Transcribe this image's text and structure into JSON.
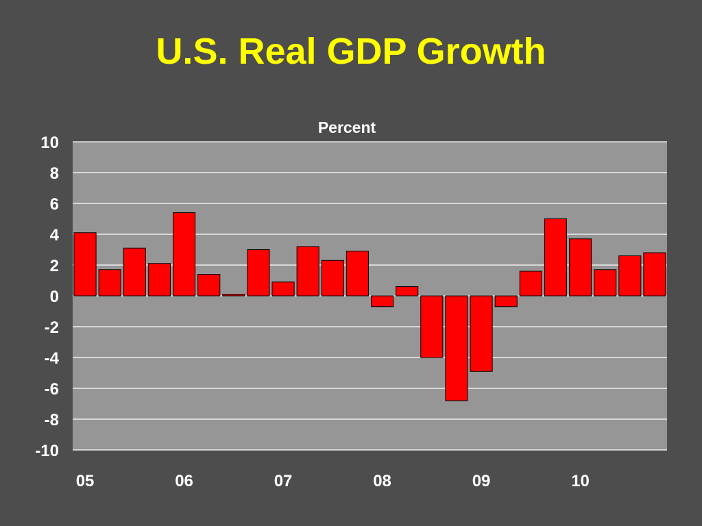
{
  "slide": {
    "title": "U.S. Real GDP Growth"
  },
  "chart_data": {
    "type": "bar",
    "title": "U.S. Real GDP Growth",
    "ylabel": "Percent",
    "xlabel": "",
    "ylim": [
      -10,
      10
    ],
    "yticks": [
      10,
      8,
      6,
      4,
      2,
      0,
      -2,
      -4,
      -6,
      -8,
      -10
    ],
    "grid": true,
    "x_tick_labels": [
      "05",
      "06",
      "07",
      "08",
      "09",
      "10"
    ],
    "values": [
      4.1,
      1.7,
      3.1,
      2.1,
      5.4,
      1.4,
      0.1,
      3.0,
      0.9,
      3.2,
      2.3,
      2.9,
      -0.7,
      0.6,
      -4.0,
      -6.8,
      -4.9,
      -0.7,
      1.6,
      5.0,
      3.7,
      1.7,
      2.6,
      2.8
    ],
    "colors": {
      "bar": "#ff0000",
      "plot_background": "#969696",
      "gridline": "#ffffff",
      "title": "#ffff00",
      "text": "#ffffff"
    }
  }
}
